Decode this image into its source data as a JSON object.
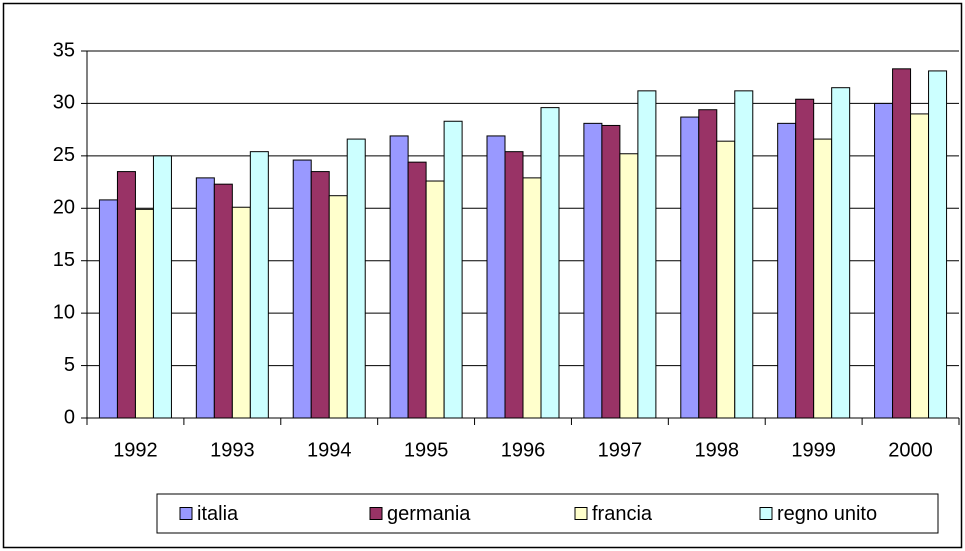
{
  "chart_data": {
    "type": "bar",
    "categories": [
      "1992",
      "1993",
      "1994",
      "1995",
      "1996",
      "1997",
      "1998",
      "1999",
      "2000"
    ],
    "series": [
      {
        "name": "italia",
        "color": "#9999ff",
        "values": [
          20.8,
          22.9,
          24.6,
          26.9,
          26.9,
          28.1,
          28.7,
          28.1,
          30.0
        ]
      },
      {
        "name": "germania",
        "color": "#993366",
        "values": [
          23.5,
          22.3,
          23.5,
          24.4,
          25.4,
          27.9,
          29.4,
          30.4,
          33.3
        ]
      },
      {
        "name": "francia",
        "color": "#ffffcc",
        "values": [
          19.9,
          20.1,
          21.2,
          22.6,
          22.9,
          25.2,
          26.4,
          26.6,
          29.0
        ]
      },
      {
        "name": "regno unito",
        "color": "#ccffff",
        "values": [
          25.0,
          25.4,
          26.6,
          28.3,
          29.6,
          31.2,
          31.2,
          31.5,
          33.1
        ]
      }
    ],
    "ylim": [
      0,
      35
    ],
    "yticks": [
      0,
      5,
      10,
      15,
      20,
      25,
      30,
      35
    ],
    "grid": true,
    "legend": "bottom"
  }
}
